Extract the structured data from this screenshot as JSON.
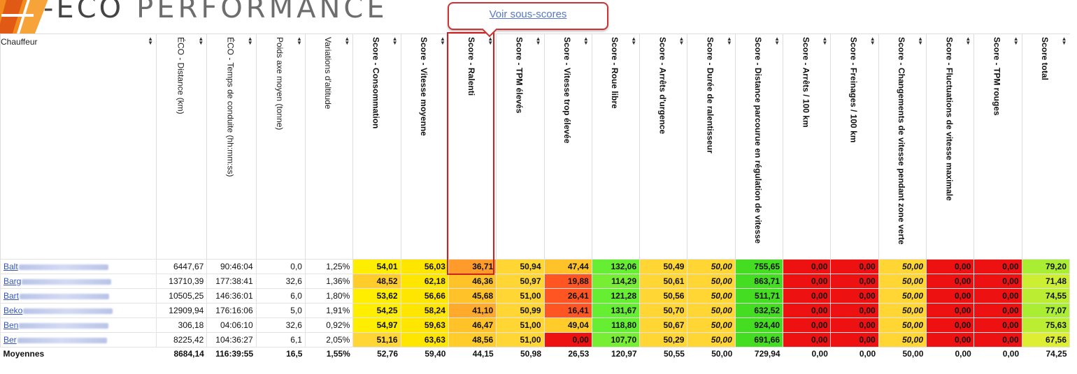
{
  "logo": {
    "prefix": "-ECO",
    "word": "PERFORMANCE",
    "mark_colors": [
      "#f28c1e",
      "#e05a16"
    ]
  },
  "tooltip": {
    "link_label": "Voir sous-scores"
  },
  "table": {
    "first_header": "Chauffeur",
    "headers": [
      {
        "label": "ÉCO - Distance (km)",
        "bold": false
      },
      {
        "label": "ÉCO - Temps de conduite (hh:mm:ss)",
        "bold": false
      },
      {
        "label": "Poids axe moyen (tonne)",
        "bold": false
      },
      {
        "label": "Variations d'altitude",
        "bold": false
      },
      {
        "label": "Score - Consommation",
        "bold": true
      },
      {
        "label": "Score - Vitesse moyenne",
        "bold": true
      },
      {
        "label": "Score - Ralenti",
        "bold": true
      },
      {
        "label": "Score - TPM élevés",
        "bold": true
      },
      {
        "label": "Score - Vitesse trop élevée",
        "bold": true
      },
      {
        "label": "Score - Roue libre",
        "bold": true
      },
      {
        "label": "Score - Arrêts d'urgence",
        "bold": true
      },
      {
        "label": "Score - Durée de ralentisseur",
        "bold": true
      },
      {
        "label": "Score - Distance parcourue en régulation de vitesse",
        "bold": true
      },
      {
        "label": "Score - Arrêts / 100 km",
        "bold": true
      },
      {
        "label": "Score - Freinages / 100 km",
        "bold": true
      },
      {
        "label": "Score - Changements de vitesse pendant zone verte",
        "bold": true
      },
      {
        "label": "Score - Fluctuations de vitesse maximale",
        "bold": true
      },
      {
        "label": "Score - TPM rouges",
        "bold": true
      },
      {
        "label": "Score total",
        "bold": true
      }
    ],
    "rows": [
      {
        "name": "Balt",
        "values": [
          "6447,67",
          "90:46:04",
          "0,0",
          "1,25%",
          "54,01",
          "56,03",
          "36,71",
          "50,94",
          "47,44",
          "132,06",
          "50,49",
          "50,00",
          "755,65",
          "0,00",
          "0,00",
          "50,00",
          "0,00",
          "0,00",
          "79,20"
        ],
        "colors": [
          "",
          "",
          "",
          "",
          "#ffee00",
          "#ffe600",
          "#ff9b2a",
          "#ffd633",
          "#ffc229",
          "#66ee33",
          "#ffd633",
          "#ffd633",
          "#44dd22",
          "#ee1111",
          "#ee1111",
          "#ffd633",
          "#ee1111",
          "#ee1111",
          "#aaee33"
        ]
      },
      {
        "name": "Barg",
        "values": [
          "13710,39",
          "177:38:41",
          "32,6",
          "1,36%",
          "48,52",
          "62,18",
          "46,36",
          "50,97",
          "19,88",
          "114,29",
          "50,61",
          "50,00",
          "863,71",
          "0,00",
          "0,00",
          "50,00",
          "0,00",
          "0,00",
          "71,48"
        ],
        "colors": [
          "",
          "",
          "",
          "",
          "#ffcc2a",
          "#ffe600",
          "#ffc229",
          "#ffd633",
          "#ff5522",
          "#77ee33",
          "#ffd633",
          "#ffd633",
          "#44dd22",
          "#ee1111",
          "#ee1111",
          "#ffd633",
          "#ee1111",
          "#ee1111",
          "#ccee33"
        ]
      },
      {
        "name": "Bart",
        "values": [
          "10505,25",
          "146:36:01",
          "6,0",
          "1,80%",
          "53,62",
          "56,66",
          "45,68",
          "51,00",
          "26,41",
          "121,28",
          "50,56",
          "50,00",
          "511,71",
          "0,00",
          "0,00",
          "50,00",
          "0,00",
          "0,00",
          "74,55"
        ],
        "colors": [
          "",
          "",
          "",
          "",
          "#ffee00",
          "#ffe600",
          "#ffc229",
          "#ffd633",
          "#ff5522",
          "#66ee33",
          "#ffd633",
          "#ffd633",
          "#44dd22",
          "#ee1111",
          "#ee1111",
          "#ffd633",
          "#ee1111",
          "#ee1111",
          "#bbee33"
        ]
      },
      {
        "name": "Beko",
        "values": [
          "12909,94",
          "176:16:06",
          "5,0",
          "1,91%",
          "54,25",
          "58,24",
          "41,10",
          "50,99",
          "16,41",
          "131,67",
          "50,70",
          "50,00",
          "632,52",
          "0,00",
          "0,00",
          "50,00",
          "0,00",
          "0,00",
          "77,07"
        ],
        "colors": [
          "",
          "",
          "",
          "",
          "#ffee00",
          "#ffe600",
          "#ffaa2a",
          "#ffd633",
          "#ff5522",
          "#66ee33",
          "#ffd633",
          "#ffd633",
          "#44dd22",
          "#ee1111",
          "#ee1111",
          "#ffd633",
          "#ee1111",
          "#ee1111",
          "#aaee33"
        ]
      },
      {
        "name": "Ben",
        "values": [
          "306,18",
          "04:06:10",
          "32,6",
          "0,92%",
          "54,97",
          "59,63",
          "46,47",
          "51,00",
          "49,04",
          "118,80",
          "50,67",
          "50,00",
          "924,40",
          "0,00",
          "0,00",
          "50,00",
          "0,00",
          "0,00",
          "75,63"
        ],
        "colors": [
          "",
          "",
          "",
          "",
          "#ffee00",
          "#ffe600",
          "#ffc229",
          "#ffd633",
          "#ffcc2a",
          "#66ee33",
          "#ffd633",
          "#ffd633",
          "#44dd22",
          "#ee1111",
          "#ee1111",
          "#ffd633",
          "#ee1111",
          "#ee1111",
          "#bbee33"
        ]
      },
      {
        "name": "Ber",
        "values": [
          "8225,42",
          "104:36:27",
          "6,1",
          "2,05%",
          "51,16",
          "63,63",
          "48,56",
          "51,00",
          "0,00",
          "107,70",
          "50,29",
          "50,00",
          "691,66",
          "0,00",
          "0,00",
          "50,00",
          "0,00",
          "0,00",
          "67,56"
        ],
        "colors": [
          "",
          "",
          "",
          "",
          "#ffd633",
          "#ffe600",
          "#ffcc2a",
          "#ffd633",
          "#ee1111",
          "#77ee33",
          "#ffd633",
          "#ffd633",
          "#44dd22",
          "#ee1111",
          "#ee1111",
          "#ffd633",
          "#ee1111",
          "#ee1111",
          "#ddee33"
        ]
      }
    ],
    "italic_columns": [
      11,
      15
    ],
    "averages": {
      "label": "Moyennes",
      "values": [
        "8684,14",
        "116:39:55",
        "16,5",
        "1,55%",
        "52,76",
        "59,40",
        "44,15",
        "50,98",
        "26,53",
        "120,97",
        "50,55",
        "50,00",
        "729,94",
        "0,00",
        "0,00",
        "50,00",
        "0,00",
        "0,00",
        "74,25"
      ]
    }
  }
}
